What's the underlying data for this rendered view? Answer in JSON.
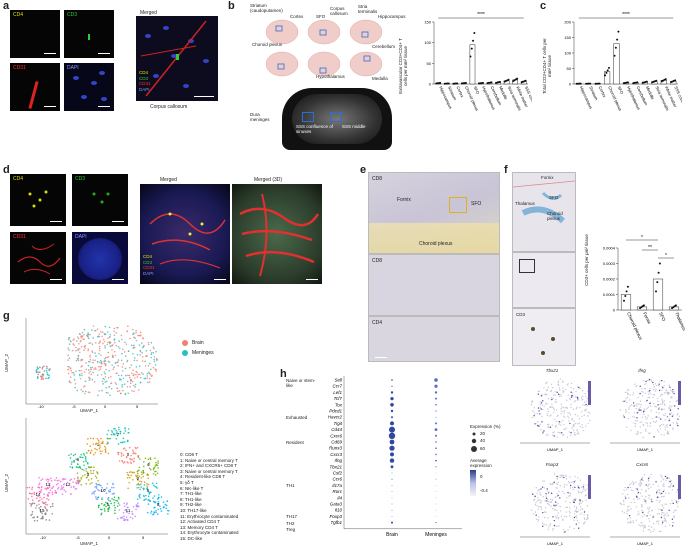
{
  "panels": {
    "a": {
      "label": "a",
      "cd4": "CD4",
      "cd3": "CD3",
      "cd31": "CD31",
      "dapi": "DAPI",
      "merged": "Merged",
      "legend": [
        "CD4",
        "CD3",
        "CD31",
        "DAPI"
      ],
      "caption": "Corpus callosum",
      "colors": {
        "cd4": "#e6e600",
        "cd3": "#33cc33",
        "cd31": "#ff3333",
        "dapi": "#6a7bff"
      }
    },
    "b": {
      "label": "b",
      "regions": [
        "Striatum (caudoputamen)",
        "Cortex",
        "SFO",
        "Corpus callosum",
        "Stria terminalis",
        "Hippocampus",
        "Choroid plexus",
        "Cerebellum",
        "Hypothalamus",
        "Medulla"
      ],
      "dura_label": "Dura meninges",
      "sss_conf": "SSS confluence of sinuses",
      "sss_mid": "SSS middle",
      "ylabel": "Extravascular CD3+CD4+ T cells per mm² tissue",
      "sig": "****"
    },
    "c": {
      "label": "c",
      "ylabel": "Total CD3+CD4+ T cells per mm² tissue",
      "sig": "****"
    },
    "d": {
      "label": "d",
      "cd4": "CD4",
      "cd3": "CD3",
      "cd31": "CD31",
      "dapi": "DAPI",
      "merged": "Merged",
      "merged3d": "Merged (3D)",
      "legend": [
        "CD4",
        "CD3",
        "CD31",
        "DAPI"
      ]
    },
    "e": {
      "label": "e",
      "cd8_top": "CD8",
      "fornix": "Fornix",
      "sfo": "SFO",
      "choroid": "Choroid plexus",
      "cd8_mid": "CD8",
      "cd4_bot": "CD4"
    },
    "f": {
      "label": "f",
      "fornix": "Fornix",
      "sfo": "SFO",
      "thalamus": "Thalamus",
      "choroid": "Choroid plexus",
      "cd3": "CD3",
      "ylabel": "CD3+ cells per μm² tissue",
      "sig": [
        "*",
        "**",
        "*"
      ]
    },
    "g": {
      "label": "g",
      "xlab": "UMAP_1",
      "ylab": "UMAP_2",
      "legend_brain": "Brain",
      "legend_meninges": "Meninges",
      "clusters": [
        "0: CD8 T",
        "1: Naive or central memory T",
        "2: IFN+ and CXCR6+ CD8 T",
        "3: Naive or central memory T",
        "4: Resident-like CD8 T",
        "5: γδ T",
        "6: NK-like T",
        "7: TH1-like",
        "8: TH1-like",
        "9: TH2-like",
        "10: TH17-like",
        "11: Erythrocyte contaminated",
        "12: Activated CD4 T",
        "13: Memory CD4 T",
        "14: Erythrocyte contaminated",
        "15: DC-like"
      ]
    },
    "h": {
      "label": "h",
      "groups": [
        "Naive or stem-like",
        "Exhausted",
        "Resident",
        "TH1",
        "TH17",
        "TH2",
        "Treg"
      ],
      "genes": [
        "Sell",
        "Ccr7",
        "Lef1",
        "Tcf7",
        "Tox",
        "Pdcd1",
        "Havcr2",
        "Tigit",
        "Cd44",
        "Cxcr6",
        "Cd69",
        "Runx3",
        "Cxcr3",
        "Ifng",
        "Tbx21",
        "Csf2",
        "Ccr6",
        "Il17a",
        "Rorc",
        "Il4",
        "Gata3",
        "Il10",
        "Foxp3",
        "Tgfb1"
      ],
      "xcats": [
        "Brain",
        "Meninges"
      ],
      "legend_title": "Expression (%)",
      "legend_sizes": [
        "20",
        "40",
        "60"
      ],
      "avg_title": "Average expression",
      "avg_ticks": [
        "0",
        "-0.4"
      ],
      "feature_genes": [
        "Tbx21",
        "Ifng",
        "Foxp3",
        "Cxcr6"
      ],
      "umap1": "UMAP_1",
      "umap2": "UMAP_2"
    }
  },
  "chart_data": [
    {
      "type": "scatter",
      "title": "",
      "ylabel": "Extravascular CD3+CD4+ T cells per mm² tissue",
      "categories": [
        "Hippocampus",
        "Striatum",
        "Cortex",
        "Choroid plexus",
        "SFO",
        "Hypothalamus",
        "Cerebellum",
        "Medulla",
        "Stria terminalis",
        "White matter",
        "SSS confluence of sinuses"
      ],
      "values": [
        2,
        1,
        1,
        2,
        95,
        2,
        3,
        4,
        8,
        10,
        6
      ],
      "ylim": [
        0,
        150
      ],
      "yticks": [
        0,
        50,
        100,
        150
      ]
    },
    {
      "type": "scatter",
      "title": "",
      "ylabel": "Total CD3+CD4+ T cells per mm² tissue",
      "categories": [
        "Hippocampus",
        "Striatum",
        "Cortex",
        "Choroid plexus",
        "SFO",
        "Hypothalamus",
        "Cerebellum",
        "Medulla",
        "Stria terminalis",
        "White matter",
        "SSS confluence of sinuses"
      ],
      "values": [
        1,
        1,
        1,
        40,
        130,
        4,
        4,
        6,
        8,
        12,
        9
      ],
      "ylim": [
        0,
        200
      ],
      "yticks": [
        0,
        50,
        100,
        150,
        200
      ]
    },
    {
      "type": "bar",
      "title": "",
      "ylabel": "CD3+ cells per μm² tissue",
      "categories": [
        "Choroid plexus",
        "Fornix",
        "SFO",
        "Thalamus"
      ],
      "values": [
        0.0001,
        2e-05,
        0.0002,
        2e-05
      ],
      "ylim": [
        0,
        0.0004
      ],
      "yticks": [
        "0",
        "0.0001",
        "0.0002",
        "0.0003",
        "0.0004"
      ]
    }
  ]
}
